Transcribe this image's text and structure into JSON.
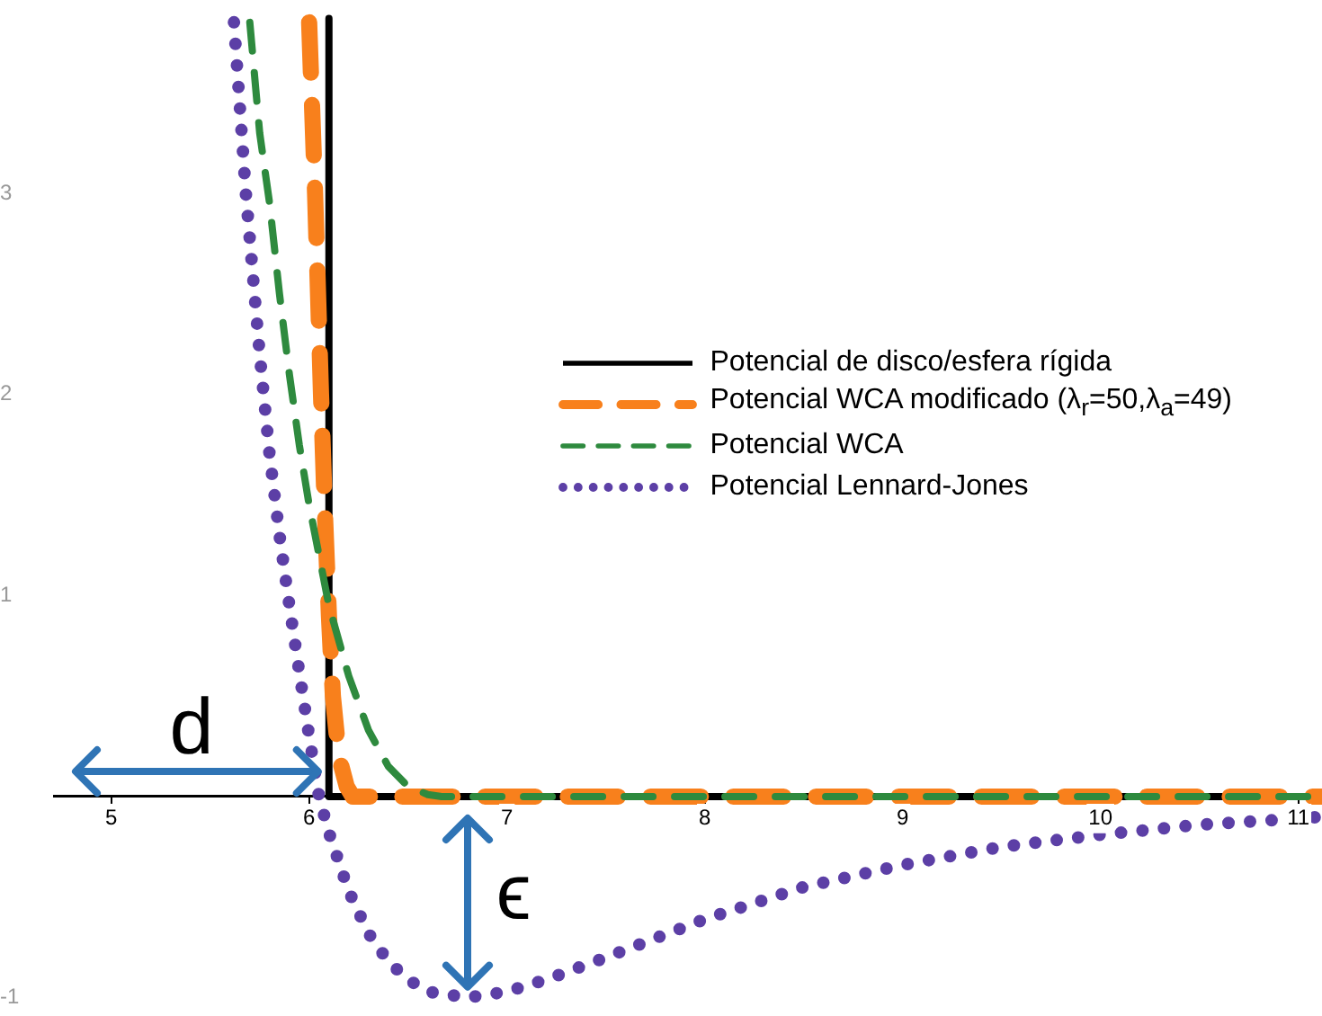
{
  "chart_data": {
    "type": "line",
    "xlim": [
      4.71,
      11.12
    ],
    "ylim": [
      -1,
      3.87
    ],
    "xticks": [
      5,
      6,
      7,
      8,
      9,
      10,
      11
    ],
    "yticks": [
      -1,
      1,
      2,
      3
    ],
    "legend": "right",
    "marker": "none",
    "annotations": [
      "d",
      "ϵ"
    ],
    "series": [
      {
        "name": "Potencial de disco/esfera rígida",
        "color": "#000000",
        "line_style": "solid",
        "x": [
          6.1,
          6.1,
          11.12
        ],
        "values": [
          3.87,
          0,
          0
        ]
      },
      {
        "name": "Potencial WCA modificado (λ$_{r}$=50,λ$_{a}$=49)",
        "color": "#f8801c",
        "line_style": "dashed",
        "x": [
          6.0,
          6.03,
          6.06,
          6.08,
          6.1,
          6.12,
          6.15,
          6.19,
          6.22,
          11.12
        ],
        "values": [
          3.85,
          3,
          2,
          1.4,
          0.9,
          0.5,
          0.2,
          0.05,
          0,
          0
        ]
      },
      {
        "name": "Potencial WCA",
        "color": "#2e8a3e",
        "line_style": "dashed",
        "x": [
          5.7,
          5.75,
          5.8,
          5.85,
          5.9,
          5.95,
          6.0,
          6.05,
          6.1,
          6.2,
          6.3,
          6.4,
          6.5,
          6.6,
          6.67,
          11.12
        ],
        "values": [
          3.85,
          3.3,
          2.95,
          2.5,
          2.1,
          1.75,
          1.45,
          1.2,
          0.95,
          0.6,
          0.33,
          0.15,
          0.05,
          0.01,
          0,
          0
        ]
      },
      {
        "name": "Potencial Lennard-Jones",
        "color": "#5c3fa6",
        "line_style": "dotted",
        "x": [
          5.62,
          5.68,
          5.75,
          5.8,
          5.85,
          5.9,
          5.95,
          6.0,
          6.05,
          6.1,
          6.2,
          6.3,
          6.4,
          6.5,
          6.6,
          6.8,
          7.0,
          7.2,
          7.5,
          8.0,
          8.5,
          9.0,
          9.5,
          10.0,
          10.5,
          11.0,
          11.12
        ],
        "values": [
          3.85,
          3.0,
          2.2,
          1.7,
          1.3,
          0.95,
          0.62,
          0.3,
          0,
          -0.18,
          -0.47,
          -0.68,
          -0.82,
          -0.91,
          -0.97,
          -1.0,
          -0.97,
          -0.91,
          -0.8,
          -0.61,
          -0.45,
          -0.34,
          -0.25,
          -0.19,
          -0.14,
          -0.11,
          -0.1
        ]
      }
    ]
  }
}
